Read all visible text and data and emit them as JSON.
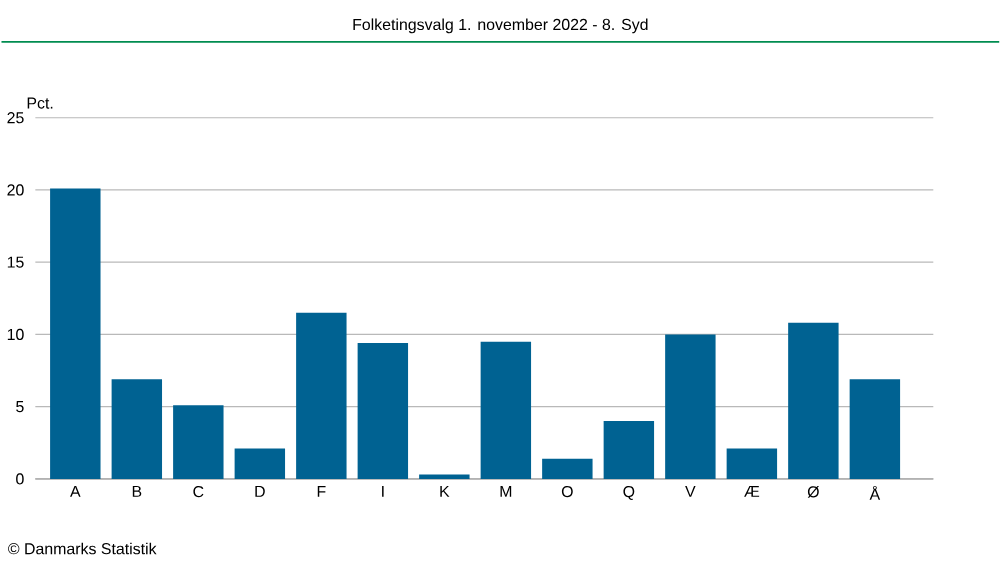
{
  "chart_data": {
    "type": "bar",
    "title": "Folketingsvalg 1. november 2022 - 8. Syd",
    "ylabel": "Pct.",
    "categories": [
      "A",
      "B",
      "C",
      "D",
      "F",
      "I",
      "K",
      "M",
      "O",
      "Q",
      "V",
      "Æ",
      "Ø",
      "Å"
    ],
    "values": [
      20.1,
      6.9,
      5.1,
      2.1,
      11.5,
      9.4,
      0.3,
      9.5,
      1.4,
      4.0,
      10.0,
      2.1,
      10.8,
      6.9
    ],
    "color": "#006292",
    "ylim": [
      0,
      25
    ],
    "yticks": [
      0,
      5,
      10,
      15,
      20,
      25
    ],
    "grid": "y",
    "annotations": [
      "© Danmarks Statistik"
    ]
  }
}
